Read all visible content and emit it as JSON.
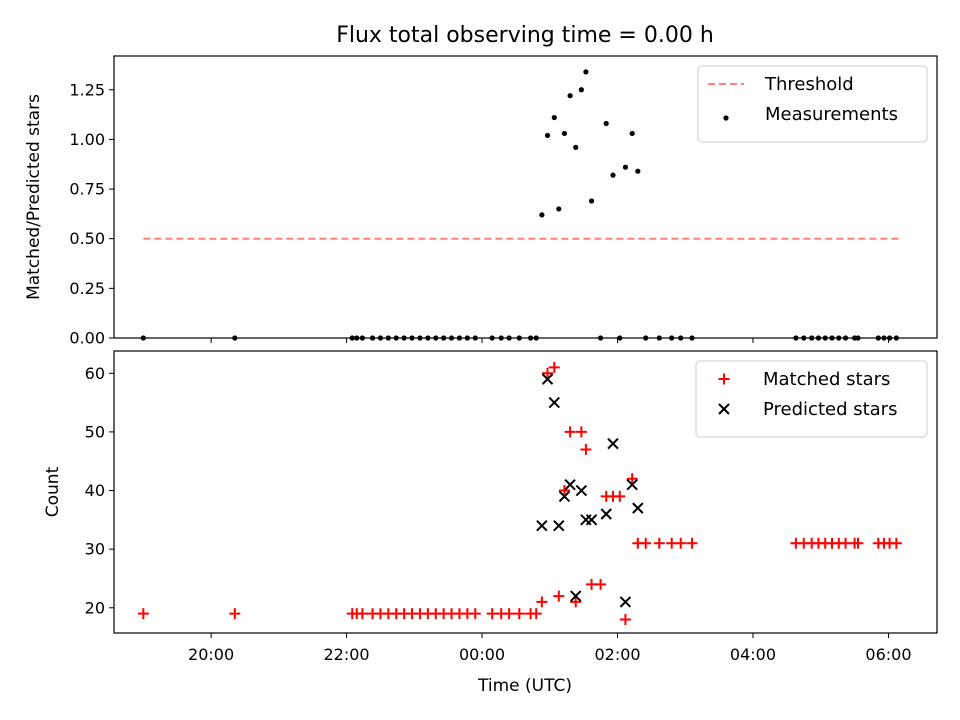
{
  "chart_data": [
    {
      "type": "scatter",
      "title": "Flux total observing time = 0.00 h",
      "xlabel": "",
      "ylabel": "Matched/Predicted stars",
      "ylim": [
        0,
        1.42
      ],
      "xlim": [
        "18:34",
        "06:43"
      ],
      "x_ticks": [
        "20:00",
        "22:00",
        "00:00",
        "02:00",
        "04:00",
        "06:00"
      ],
      "y_ticks": [
        "0.00",
        "0.25",
        "0.50",
        "0.75",
        "1.00",
        "1.25"
      ],
      "legend_position": "top-right",
      "grid": false,
      "series": [
        {
          "name": "Threshold",
          "kind": "dashed-line",
          "color": "#ff7f7f",
          "points": [
            [
              "19:00",
              0.5
            ],
            [
              "06:10",
              0.5
            ]
          ]
        },
        {
          "name": "Measurements",
          "kind": "dots",
          "color": "#000000",
          "points": [
            [
              "19:00",
              0
            ],
            [
              "20:21",
              0
            ],
            [
              "22:05",
              0
            ],
            [
              "22:09",
              0
            ],
            [
              "22:14",
              0
            ],
            [
              "22:23",
              0
            ],
            [
              "22:30",
              0
            ],
            [
              "22:37",
              0
            ],
            [
              "22:44",
              0
            ],
            [
              "22:51",
              0
            ],
            [
              "22:58",
              0
            ],
            [
              "23:05",
              0
            ],
            [
              "23:12",
              0
            ],
            [
              "23:19",
              0
            ],
            [
              "23:26",
              0
            ],
            [
              "23:33",
              0
            ],
            [
              "23:40",
              0
            ],
            [
              "23:47",
              0
            ],
            [
              "23:54",
              0
            ],
            [
              "00:09",
              0
            ],
            [
              "00:17",
              0
            ],
            [
              "00:24",
              0
            ],
            [
              "00:33",
              0
            ],
            [
              "00:43",
              0
            ],
            [
              "00:48",
              0
            ],
            [
              "00:53",
              0.62
            ],
            [
              "00:58",
              1.02
            ],
            [
              "01:04",
              1.11
            ],
            [
              "01:08",
              0.65
            ],
            [
              "01:13",
              1.03
            ],
            [
              "01:18",
              1.22
            ],
            [
              "01:23",
              0.96
            ],
            [
              "01:28",
              1.25
            ],
            [
              "01:32",
              1.34
            ],
            [
              "01:37",
              0.69
            ],
            [
              "01:45",
              0
            ],
            [
              "01:50",
              1.08
            ],
            [
              "01:56",
              0.82
            ],
            [
              "02:02",
              0
            ],
            [
              "02:07",
              0.86
            ],
            [
              "02:13",
              1.03
            ],
            [
              "02:18",
              0.84
            ],
            [
              "02:25",
              0
            ],
            [
              "02:37",
              0
            ],
            [
              "02:48",
              0
            ],
            [
              "02:56",
              0
            ],
            [
              "03:06",
              0
            ],
            [
              "04:38",
              0
            ],
            [
              "04:45",
              0
            ],
            [
              "04:52",
              0
            ],
            [
              "04:58",
              0
            ],
            [
              "05:04",
              0
            ],
            [
              "05:10",
              0
            ],
            [
              "05:16",
              0
            ],
            [
              "05:22",
              0
            ],
            [
              "05:30",
              0
            ],
            [
              "05:33",
              0
            ],
            [
              "05:51",
              0
            ],
            [
              "05:56",
              0
            ],
            [
              "06:01",
              0
            ],
            [
              "06:07",
              0
            ]
          ]
        }
      ]
    },
    {
      "type": "scatter",
      "title": "",
      "xlabel": "Time (UTC)",
      "ylabel": "Count",
      "ylim": [
        15.7,
        63.8
      ],
      "xlim": [
        "18:34",
        "06:43"
      ],
      "x_ticks": [
        "20:00",
        "22:00",
        "00:00",
        "02:00",
        "04:00",
        "06:00"
      ],
      "y_ticks": [
        "20",
        "30",
        "40",
        "50",
        "60"
      ],
      "legend_position": "top-right",
      "grid": false,
      "series": [
        {
          "name": "Matched stars",
          "kind": "plus",
          "color": "#ff0000",
          "points": [
            [
              "19:00",
              19
            ],
            [
              "20:21",
              19
            ],
            [
              "22:05",
              19
            ],
            [
              "22:09",
              19
            ],
            [
              "22:14",
              19
            ],
            [
              "22:23",
              19
            ],
            [
              "22:30",
              19
            ],
            [
              "22:37",
              19
            ],
            [
              "22:44",
              19
            ],
            [
              "22:51",
              19
            ],
            [
              "22:58",
              19
            ],
            [
              "23:05",
              19
            ],
            [
              "23:12",
              19
            ],
            [
              "23:19",
              19
            ],
            [
              "23:26",
              19
            ],
            [
              "23:33",
              19
            ],
            [
              "23:40",
              19
            ],
            [
              "23:47",
              19
            ],
            [
              "23:54",
              19
            ],
            [
              "00:09",
              19
            ],
            [
              "00:17",
              19
            ],
            [
              "00:24",
              19
            ],
            [
              "00:33",
              19
            ],
            [
              "00:43",
              19
            ],
            [
              "00:48",
              19
            ],
            [
              "00:53",
              21
            ],
            [
              "00:58",
              60
            ],
            [
              "01:04",
              61
            ],
            [
              "01:08",
              22
            ],
            [
              "01:13",
              40
            ],
            [
              "01:18",
              50
            ],
            [
              "01:23",
              21
            ],
            [
              "01:28",
              50
            ],
            [
              "01:32",
              47
            ],
            [
              "01:37",
              24
            ],
            [
              "01:45",
              24
            ],
            [
              "01:50",
              39
            ],
            [
              "01:56",
              39
            ],
            [
              "02:02",
              39
            ],
            [
              "02:07",
              18
            ],
            [
              "02:13",
              42
            ],
            [
              "02:18",
              31
            ],
            [
              "02:25",
              31
            ],
            [
              "02:37",
              31
            ],
            [
              "02:48",
              31
            ],
            [
              "02:56",
              31
            ],
            [
              "03:06",
              31
            ],
            [
              "04:38",
              31
            ],
            [
              "04:45",
              31
            ],
            [
              "04:52",
              31
            ],
            [
              "04:58",
              31
            ],
            [
              "05:04",
              31
            ],
            [
              "05:10",
              31
            ],
            [
              "05:16",
              31
            ],
            [
              "05:22",
              31
            ],
            [
              "05:30",
              31
            ],
            [
              "05:33",
              31
            ],
            [
              "05:51",
              31
            ],
            [
              "05:56",
              31
            ],
            [
              "06:01",
              31
            ],
            [
              "06:07",
              31
            ]
          ]
        },
        {
          "name": "Predicted stars",
          "kind": "cross",
          "color": "#000000",
          "points": [
            [
              "00:53",
              34
            ],
            [
              "00:58",
              59
            ],
            [
              "01:04",
              55
            ],
            [
              "01:08",
              34
            ],
            [
              "01:13",
              39
            ],
            [
              "01:18",
              41
            ],
            [
              "01:23",
              22
            ],
            [
              "01:28",
              40
            ],
            [
              "01:32",
              35
            ],
            [
              "01:37",
              35
            ],
            [
              "01:50",
              36
            ],
            [
              "01:56",
              48
            ],
            [
              "02:07",
              21
            ],
            [
              "02:13",
              41
            ],
            [
              "02:18",
              37
            ]
          ]
        }
      ]
    }
  ]
}
